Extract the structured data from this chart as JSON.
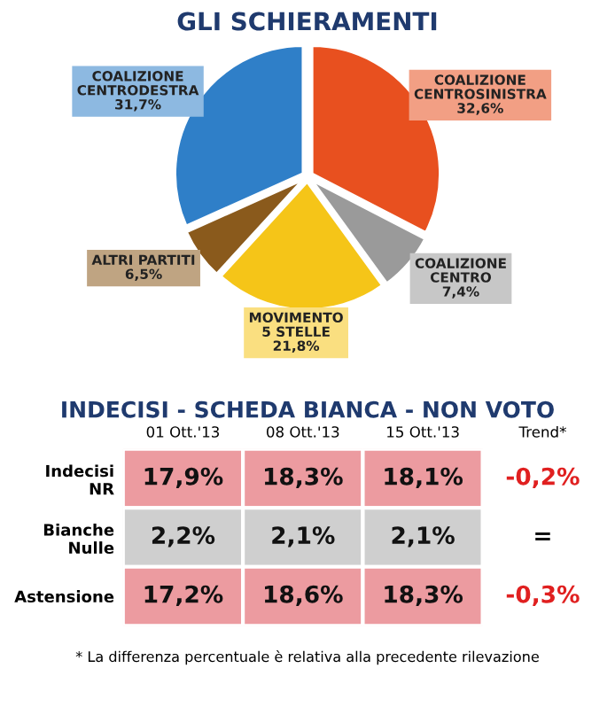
{
  "chart_data": [
    {
      "type": "pie",
      "title": "GLI SCHIERAMENTI",
      "categories": [
        "COALIZIONE\nCENTROSINISTRA",
        "COALIZIONE\nCENTRO",
        "MOVIMENTO\n5 STELLE",
        "ALTRI PARTITI",
        "COALIZIONE\nCENTRODESTRA"
      ],
      "values": [
        32.6,
        7.4,
        21.8,
        6.5,
        31.7
      ],
      "value_labels": [
        "32,6%",
        "7,4%",
        "21,8%",
        "6,5%",
        "31,7%"
      ],
      "colors": [
        "#e8501f",
        "#9a9a9a",
        "#f5c518",
        "#8a5a1c",
        "#2f7fc8"
      ]
    },
    {
      "type": "heatmap",
      "title": "INDECISI - SCHEDA BIANCA - NON VOTO",
      "categories": [
        "01 Ott.'13",
        "08 Ott.'13",
        "15 Ott.'13",
        "Trend*"
      ],
      "y_categories": [
        "Indecisi\nNR",
        "Bianche\nNulle",
        "Astensione"
      ],
      "cells": [
        [
          17.9,
          18.3,
          18.1,
          -0.2
        ],
        [
          2.2,
          2.1,
          2.1,
          null
        ],
        [
          17.2,
          18.6,
          18.3,
          -0.3
        ]
      ],
      "cell_labels": [
        [
          "17,9%",
          "18,3%",
          "18,1%",
          "-0,2%"
        ],
        [
          "2,2%",
          "2,1%",
          "2,1%",
          "="
        ],
        [
          "17,2%",
          "18,6%",
          "18,3%",
          "-0,3%"
        ]
      ],
      "colors": [
        [
          "#ec9ba0",
          "#ec9ba0",
          "#ec9ba0",
          "#ffffff"
        ],
        [
          "#cfcfcf",
          "#cfcfcf",
          "#cfcfcf",
          "#ffffff"
        ],
        [
          "#ec9ba0",
          "#ec9ba0",
          "#ec9ba0",
          "#ffffff"
        ]
      ],
      "annotations": [
        "* La differenza percentuale è relativa alla precedente rilevazione"
      ]
    }
  ]
}
